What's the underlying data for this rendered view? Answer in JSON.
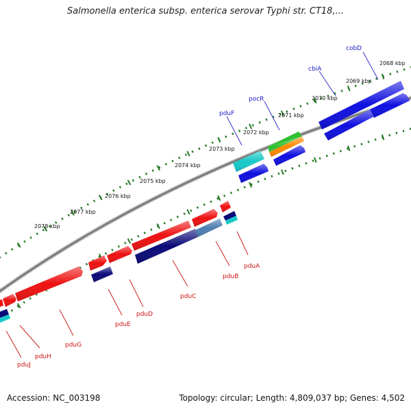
{
  "title": "Salmonella enterica subsp. enterica serovar Typhi str. CT18,...",
  "accession": "Accession: NC_003198",
  "topology": "Topology: circular; Length: 4,809,037 bp; Genes: 4,502",
  "scale_labels": [
    "2068 kbp",
    "2069 kbp",
    "2070 kbp",
    "2071 kbp",
    "2072 kbp",
    "2073 kbp",
    "2074 kbp",
    "2075 kbp",
    "2076 kbp",
    "2077 kbp",
    "2078 kbp"
  ],
  "genes_forward": [
    "cobD",
    "cbiA",
    "pocR",
    "pduF"
  ],
  "genes_reverse": [
    "pduA",
    "pduB",
    "pduC",
    "pduD",
    "pduE",
    "pduG",
    "pduH",
    "pduJ"
  ],
  "colors": {
    "forward_label": "#1a1acc",
    "reverse_label": "#cc1111",
    "forward_gene": "#1010e0",
    "reverse_gene": "#ee1111",
    "navy_gene": "#0a0a78",
    "steel_gene": "#4f7fb0",
    "cyan_gene": "#18c8c8",
    "green_gene": "#30c030",
    "orange_gene": "#ff8a00",
    "backbone": "#8a8a8a",
    "tick": "#227722"
  }
}
